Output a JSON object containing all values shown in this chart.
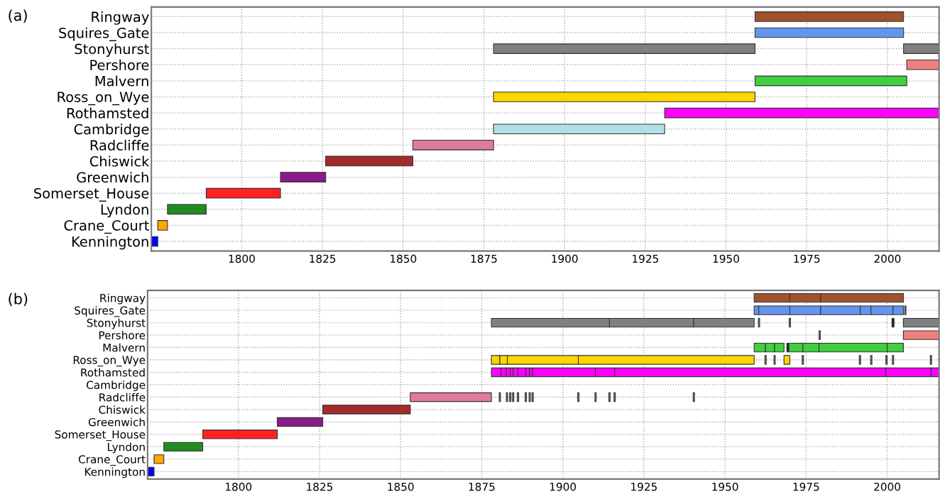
{
  "chart_data": [
    {
      "type": "bar",
      "orientation": "horizontal",
      "title": "(a)",
      "categories": [
        "Ringway",
        "Squires_Gate",
        "Stonyhurst",
        "Pershore",
        "Malvern",
        "Ross_on_Wye",
        "Rothamsted",
        "Cambridge",
        "Radcliffe",
        "Chiswick",
        "Greenwich",
        "Somerset_House",
        "Lyndon",
        "Crane_Court",
        "Kennington"
      ],
      "series": [
        {
          "values": [
            46,
            46,
            81,
            10,
            47,
            81,
            85,
            53,
            25,
            27,
            14,
            23,
            12,
            3,
            2
          ],
          "base": [
            1959,
            1959,
            1878,
            2006,
            1959,
            1878,
            1931,
            1878,
            1853,
            1826,
            1812,
            1789,
            1777,
            1774,
            1772
          ],
          "colors": [
            "#a0522d",
            "#6495ed",
            "#808080",
            "#f08080",
            "#3fcf3f",
            "#ffd700",
            "#ff00ff",
            "#b0e0e6",
            "#e07ba0",
            "#a52a2a",
            "#8b1a8b",
            "#ff2020",
            "#228b22",
            "#ffa500",
            "#0000ff"
          ]
        },
        {
          "values": [
            null,
            null,
            11,
            null,
            null,
            null,
            null,
            null,
            null,
            null,
            null,
            null,
            null,
            null,
            null
          ],
          "base": [
            null,
            null,
            2005,
            null,
            null,
            null,
            null,
            null,
            null,
            null,
            null,
            null,
            null,
            null,
            null
          ],
          "colors": [
            null,
            null,
            "#808080",
            null,
            null,
            null,
            null,
            null,
            null,
            null,
            null,
            null,
            null,
            null,
            null
          ]
        }
      ],
      "xlim": [
        1772,
        2016
      ],
      "xticks": [
        1800,
        1825,
        1850,
        1875,
        1900,
        1925,
        1950,
        1975,
        2000
      ],
      "grid": true
    },
    {
      "type": "bar",
      "orientation": "horizontal",
      "title": "(b)",
      "categories": [
        "Ringway",
        "Squires_Gate",
        "Stonyhurst",
        "Pershore",
        "Malvern",
        "Ross_on_Wye",
        "Rothamsted",
        "Cambridge",
        "Radcliffe",
        "Chiswick",
        "Greenwich",
        "Somerset_House",
        "Lyndon",
        "Crane_Court",
        "Kennington"
      ],
      "series": [
        {
          "values": [
            11,
            1.4,
            36.4,
            0.4,
            3.5,
            2.6,
            3,
            null,
            25,
            27,
            14,
            23,
            12,
            3,
            2
          ],
          "base": [
            1959,
            1959,
            1878,
            1979,
            1959,
            1878,
            1878,
            null,
            1853,
            1826,
            1812,
            1789,
            1777,
            1774,
            1772
          ],
          "colors": [
            "#a0522d",
            "#6495ed",
            "#808080",
            "#808080",
            "#3fcf3f",
            "#ffd700",
            "#ff00ff",
            null,
            "#e07ba0",
            "#a52a2a",
            "#8b1a8b",
            "#ff2020",
            "#228b22",
            "#ffa500",
            "#0000ff"
          ]
        },
        {
          "values": [
            9.5,
            9.6,
            26,
            11,
            2.8,
            2.3,
            1.6,
            null,
            0.4,
            null,
            null,
            null,
            null,
            null,
            null
          ],
          "base": [
            1970,
            1960.4,
            1914.4,
            2005,
            1962.5,
            1880.6,
            1881,
            null,
            1880.4,
            null,
            null,
            null,
            null,
            null,
            null
          ],
          "colors": [
            "#a0522d",
            "#6495ed",
            "#808080",
            "#f08080",
            "#3fcf3f",
            "#ffd700",
            "#ff00ff",
            null,
            "#808080",
            null,
            null,
            null,
            null,
            null,
            null
          ]
        },
        {
          "values": [
            25.5,
            9.5,
            18.6,
            null,
            2.9,
            21.9,
            1.2,
            null,
            0.4,
            null,
            null,
            null,
            null,
            null,
            null
          ],
          "base": [
            1979.5,
            1970,
            1940.4,
            null,
            1965.3,
            1882.9,
            1882.6,
            null,
            1882.6,
            null,
            null,
            null,
            null,
            null,
            null
          ],
          "colors": [
            "#a0522d",
            "#6495ed",
            "#808080",
            null,
            "#3fcf3f",
            "#ffd700",
            "#ff00ff",
            null,
            "#808080",
            null,
            null,
            null,
            null,
            null,
            null
          ]
        },
        {
          "values": [
            null,
            12.2,
            0.4,
            null,
            0.6,
            54.2,
            0.9,
            null,
            0.4,
            null,
            null,
            null,
            null,
            null,
            null
          ],
          "base": [
            null,
            1979.5,
            1960.3,
            null,
            1969.1,
            1904.8,
            1883.8,
            null,
            1883.6,
            null,
            null,
            null,
            null,
            null,
            null
          ],
          "colors": [
            null,
            "#6495ed",
            "#808080",
            null,
            "#1a1a1a",
            "#ffd700",
            "#ff00ff",
            null,
            "#808080",
            null,
            null,
            null,
            null,
            null,
            null
          ]
        },
        {
          "values": [
            null,
            3.3,
            0.4,
            null,
            4.3,
            0.4,
            1.5,
            null,
            0.4,
            null,
            null,
            null,
            null,
            null,
            null
          ],
          "base": [
            null,
            1991.7,
            1969.8,
            null,
            1969.7,
            1962.3,
            1884.7,
            null,
            1884.5,
            null,
            null,
            null,
            null,
            null,
            null
          ],
          "colors": [
            null,
            "#6495ed",
            "#808080",
            null,
            "#3fcf3f",
            "#808080",
            "#ff00ff",
            null,
            "#808080",
            null,
            null,
            null,
            null,
            null,
            null
          ]
        },
        {
          "values": [
            null,
            6.8,
            0.6,
            null,
            5,
            0.4,
            2.4,
            null,
            0.4,
            null,
            null,
            null,
            null,
            null,
            null
          ],
          "base": [
            null,
            1995,
            2001.5,
            null,
            1974,
            1965.1,
            1886.2,
            null,
            1886,
            null,
            null,
            null,
            null,
            null,
            null
          ],
          "colors": [
            null,
            "#6495ed",
            "#1a1a1a",
            null,
            "#3fcf3f",
            "#808080",
            "#ff00ff",
            null,
            "#808080",
            null,
            null,
            null,
            null,
            null,
            null
          ]
        },
        {
          "values": [
            null,
            3.2,
            11,
            null,
            21,
            1.8,
            1.2,
            null,
            0.4,
            null,
            null,
            null,
            null,
            null,
            null
          ],
          "base": [
            null,
            2001.8,
            2005,
            null,
            1979,
            1968.2,
            1888.6,
            null,
            1888.4,
            null,
            null,
            null,
            null,
            null,
            null
          ],
          "colors": [
            null,
            "#6495ed",
            "#808080",
            null,
            "#3fcf3f",
            "#ffd700",
            "#ff00ff",
            null,
            "#808080",
            null,
            null,
            null,
            null,
            null,
            null
          ]
        },
        {
          "values": [
            null,
            0.4,
            null,
            null,
            5,
            0.4,
            0.9,
            null,
            0.4,
            null,
            null,
            null,
            null,
            null,
            null
          ],
          "base": [
            null,
            2005.4,
            null,
            null,
            2000,
            1973.8,
            1889.8,
            null,
            1889.6,
            null,
            null,
            null,
            null,
            null,
            null
          ],
          "colors": [
            null,
            "#808080",
            null,
            null,
            "#3fcf3f",
            "#808080",
            "#ff00ff",
            null,
            "#808080",
            null,
            null,
            null,
            null,
            null,
            null
          ]
        },
        {
          "values": [
            null,
            null,
            null,
            null,
            null,
            0.4,
            19.4,
            null,
            0.4,
            null,
            null,
            null,
            null,
            null,
            null
          ],
          "base": [
            null,
            null,
            null,
            null,
            null,
            1991.4,
            1890.7,
            null,
            1890.5,
            null,
            null,
            null,
            null,
            null,
            null
          ],
          "colors": [
            null,
            null,
            null,
            null,
            null,
            "#808080",
            "#ff00ff",
            null,
            "#808080",
            null,
            null,
            null,
            null,
            null,
            null
          ]
        },
        {
          "values": [
            null,
            null,
            null,
            null,
            null,
            0.4,
            5.9,
            null,
            0.4,
            null,
            null,
            null,
            null,
            null,
            null
          ],
          "base": [
            null,
            null,
            null,
            null,
            null,
            1994.9,
            1910.1,
            null,
            1904.6,
            null,
            null,
            null,
            null,
            null,
            null
          ],
          "colors": [
            null,
            null,
            null,
            null,
            null,
            "#808080",
            "#ff00ff",
            null,
            "#808080",
            null,
            null,
            null,
            null,
            null,
            null
          ]
        },
        {
          "values": [
            null,
            null,
            null,
            null,
            null,
            0.4,
            83.6,
            null,
            0.4,
            null,
            null,
            null,
            null,
            null,
            null
          ],
          "base": [
            null,
            null,
            null,
            null,
            null,
            1999.6,
            1916,
            null,
            1909.9,
            null,
            null,
            null,
            null,
            null,
            null
          ],
          "colors": [
            null,
            null,
            null,
            null,
            null,
            "#808080",
            "#ff00ff",
            null,
            "#808080",
            null,
            null,
            null,
            null,
            null,
            null
          ]
        },
        {
          "values": [
            null,
            null,
            null,
            null,
            null,
            0.4,
            13.9,
            null,
            0.4,
            null,
            null,
            null,
            null,
            null,
            null
          ],
          "base": [
            null,
            null,
            null,
            null,
            null,
            2001.6,
            1999.6,
            null,
            1914.2,
            null,
            null,
            null,
            null,
            null,
            null
          ],
          "colors": [
            null,
            null,
            null,
            null,
            null,
            "#808080",
            "#ff00ff",
            null,
            "#808080",
            null,
            null,
            null,
            null,
            null,
            null
          ]
        },
        {
          "values": [
            null,
            null,
            null,
            null,
            null,
            0.4,
            2.5,
            null,
            0.4,
            null,
            null,
            null,
            null,
            null,
            null
          ],
          "base": [
            null,
            null,
            null,
            null,
            null,
            2013.3,
            2013.5,
            null,
            1915.8,
            null,
            null,
            null,
            null,
            null,
            null
          ],
          "colors": [
            null,
            null,
            null,
            null,
            null,
            "#808080",
            "#ff00ff",
            null,
            "#808080",
            null,
            null,
            null,
            null,
            null,
            null
          ]
        },
        {
          "values": [
            null,
            null,
            null,
            null,
            null,
            null,
            null,
            null,
            0.4,
            null,
            null,
            null,
            null,
            null,
            null
          ],
          "base": [
            null,
            null,
            null,
            null,
            null,
            null,
            null,
            null,
            1940.2,
            null,
            null,
            null,
            null,
            null,
            null
          ],
          "colors": [
            null,
            null,
            null,
            null,
            null,
            null,
            null,
            null,
            "#808080",
            null,
            null,
            null,
            null,
            null,
            null
          ]
        }
      ],
      "xlim": [
        1772,
        2016
      ],
      "xticks": [
        1800,
        1825,
        1850,
        1875,
        1900,
        1925,
        1950,
        1975,
        2000
      ],
      "grid": true
    }
  ]
}
